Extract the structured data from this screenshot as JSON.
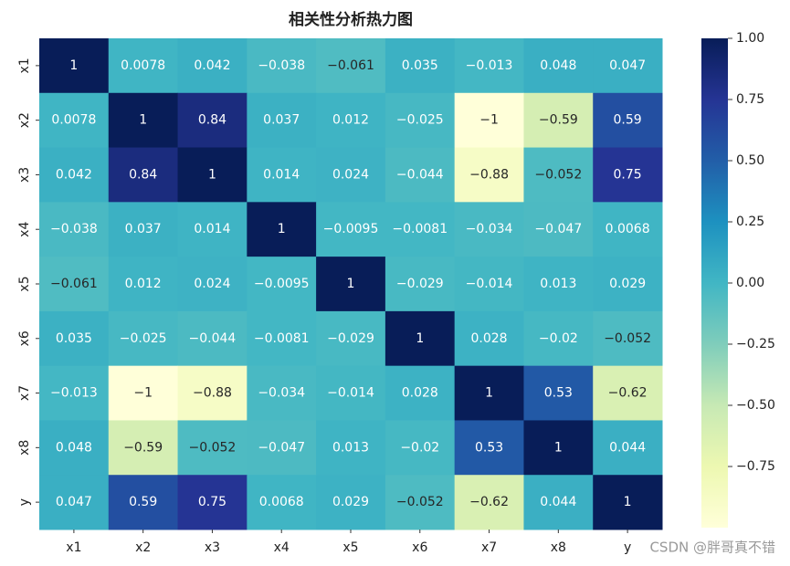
{
  "chart_data": {
    "type": "heatmap",
    "title": "相关性分析热力图",
    "x_categories": [
      "x1",
      "x2",
      "x3",
      "x4",
      "x5",
      "x6",
      "x7",
      "x8",
      "y"
    ],
    "y_categories": [
      "x1",
      "x2",
      "x3",
      "x4",
      "x5",
      "x6",
      "x7",
      "x8",
      "y"
    ],
    "values": [
      [
        1,
        0.0078,
        0.042,
        -0.038,
        -0.061,
        0.035,
        -0.013,
        0.048,
        0.047
      ],
      [
        0.0078,
        1,
        0.84,
        0.037,
        0.012,
        -0.025,
        -1,
        -0.59,
        0.59
      ],
      [
        0.042,
        0.84,
        1,
        0.014,
        0.024,
        -0.044,
        -0.88,
        -0.052,
        0.75
      ],
      [
        -0.038,
        0.037,
        0.014,
        1,
        -0.0095,
        -0.0081,
        -0.034,
        -0.047,
        0.0068
      ],
      [
        -0.061,
        0.012,
        0.024,
        -0.0095,
        1,
        -0.029,
        -0.014,
        0.013,
        0.029
      ],
      [
        0.035,
        -0.025,
        -0.044,
        -0.0081,
        -0.029,
        1,
        0.028,
        -0.02,
        -0.052
      ],
      [
        -0.013,
        -1,
        -0.88,
        -0.034,
        -0.014,
        0.028,
        1,
        0.53,
        -0.62
      ],
      [
        0.048,
        -0.59,
        -0.052,
        -0.047,
        0.013,
        -0.02,
        0.53,
        1,
        0.044
      ],
      [
        0.047,
        0.59,
        0.75,
        0.0068,
        0.029,
        -0.052,
        -0.62,
        0.044,
        1
      ]
    ],
    "value_labels": [
      [
        "1",
        "0.0078",
        "0.042",
        "−0.038",
        "−0.061",
        "0.035",
        "−0.013",
        "0.048",
        "0.047"
      ],
      [
        "0.0078",
        "1",
        "0.84",
        "0.037",
        "0.012",
        "−0.025",
        "−1",
        "−0.59",
        "0.59"
      ],
      [
        "0.042",
        "0.84",
        "1",
        "0.014",
        "0.024",
        "−0.044",
        "−0.88",
        "−0.052",
        "0.75"
      ],
      [
        "−0.038",
        "0.037",
        "0.014",
        "1",
        "−0.0095",
        "−0.0081",
        "−0.034",
        "−0.047",
        "0.0068"
      ],
      [
        "−0.061",
        "0.012",
        "0.024",
        "−0.0095",
        "1",
        "−0.029",
        "−0.014",
        "0.013",
        "0.029"
      ],
      [
        "0.035",
        "−0.025",
        "−0.044",
        "−0.0081",
        "−0.029",
        "1",
        "0.028",
        "−0.02",
        "−0.052"
      ],
      [
        "−0.013",
        "−1",
        "−0.88",
        "−0.034",
        "−0.014",
        "0.028",
        "1",
        "0.53",
        "−0.62"
      ],
      [
        "0.048",
        "−0.59",
        "−0.052",
        "−0.047",
        "0.013",
        "−0.02",
        "0.53",
        "1",
        "0.044"
      ],
      [
        "0.047",
        "0.59",
        "0.75",
        "0.0068",
        "0.029",
        "−0.052",
        "−0.62",
        "0.044",
        "1"
      ]
    ],
    "clim": [
      -1,
      1
    ],
    "colormap": "YlGnBu",
    "colorbar_ticks": [
      {
        "value": 1,
        "label": "1.00"
      },
      {
        "value": 0.75,
        "label": "0.75"
      },
      {
        "value": 0.5,
        "label": "0.50"
      },
      {
        "value": 0.25,
        "label": "0.25"
      },
      {
        "value": 0,
        "label": "0.00"
      },
      {
        "value": -0.25,
        "label": "−0.25"
      },
      {
        "value": -0.5,
        "label": "−0.50"
      },
      {
        "value": -0.75,
        "label": "−0.75"
      }
    ],
    "watermark": "CSDN @胖哥真不错"
  }
}
